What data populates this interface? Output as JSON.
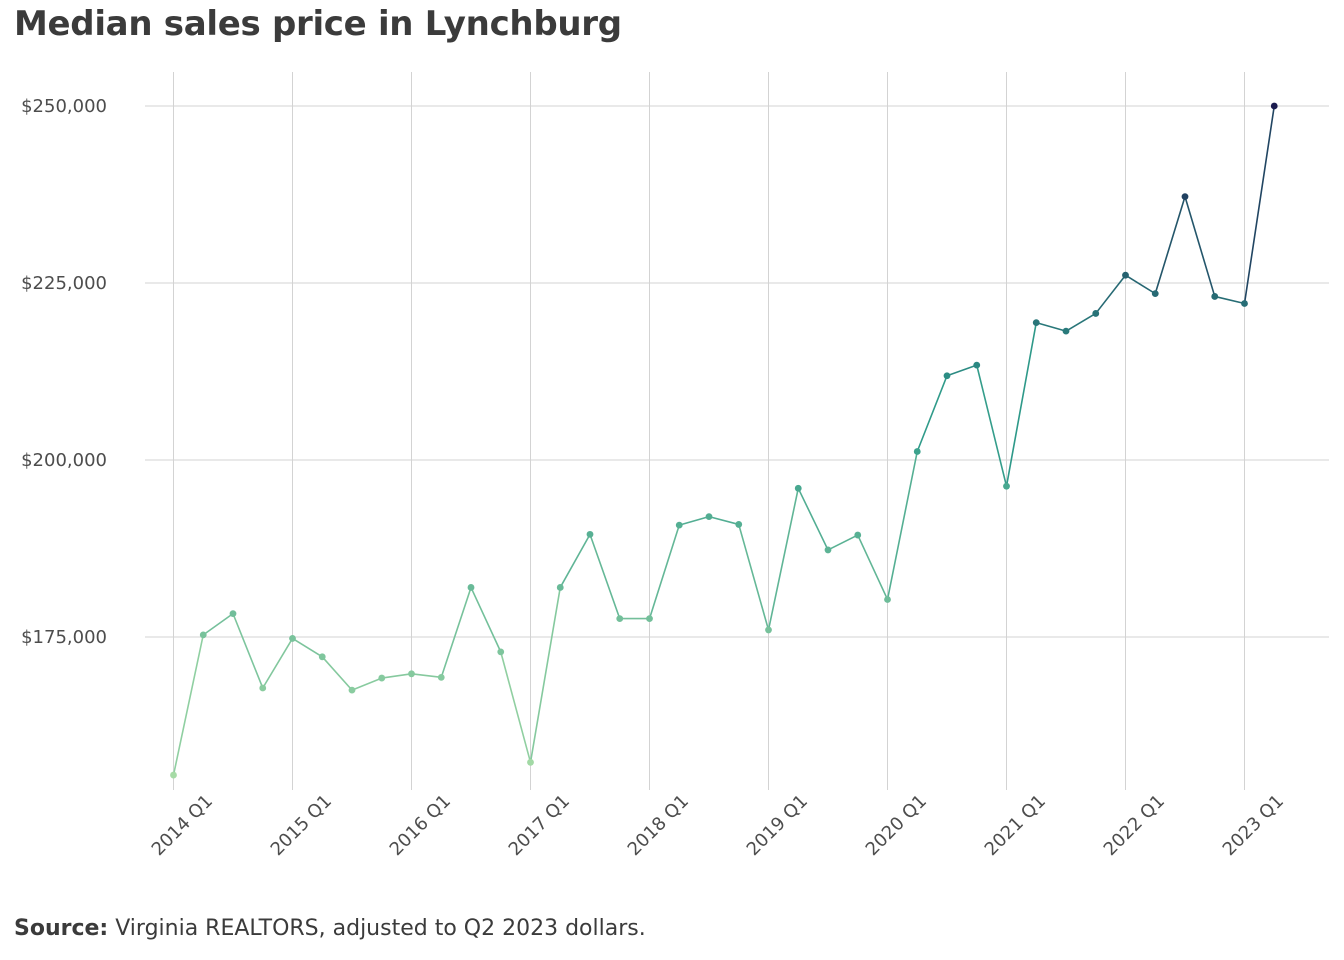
{
  "title": "Median sales price in Lynchburg",
  "source": {
    "label": "Source:",
    "text": " Virginia REALTORS, adjusted to Q2 2023 dollars."
  },
  "colors": {
    "low": "#a6dba6",
    "mid": "#2e9a8a",
    "high": "#1b1b4f",
    "grid": "#d3d3d3"
  },
  "chart_data": {
    "type": "line",
    "title": "Median sales price in Lynchburg",
    "xlabel": "",
    "ylabel": "",
    "ylim": [
      154000,
      254500
    ],
    "yticks": [
      175000,
      200000,
      225000,
      250000
    ],
    "ytick_labels": [
      "$175,000",
      "$200,000",
      "$225,000",
      "$250,000"
    ],
    "xtick_labels": [
      "2014 Q1",
      "2015 Q1",
      "2016 Q1",
      "2017 Q1",
      "2018 Q1",
      "2019 Q1",
      "2020 Q1",
      "2021 Q1",
      "2022 Q1",
      "2023 Q1"
    ],
    "grid": true,
    "legend": "none",
    "x": [
      "2014 Q1",
      "2014 Q2",
      "2014 Q3",
      "2014 Q4",
      "2015 Q1",
      "2015 Q2",
      "2015 Q3",
      "2015 Q4",
      "2016 Q1",
      "2016 Q2",
      "2016 Q3",
      "2016 Q4",
      "2017 Q1",
      "2017 Q2",
      "2017 Q3",
      "2017 Q4",
      "2018 Q1",
      "2018 Q2",
      "2018 Q3",
      "2018 Q4",
      "2019 Q1",
      "2019 Q2",
      "2019 Q3",
      "2019 Q4",
      "2020 Q1",
      "2020 Q2",
      "2020 Q3",
      "2020 Q4",
      "2021 Q1",
      "2021 Q2",
      "2021 Q3",
      "2021 Q4",
      "2022 Q1",
      "2022 Q2",
      "2022 Q3",
      "2022 Q4",
      "2023 Q1",
      "2023 Q2"
    ],
    "values": [
      155500,
      175300,
      178300,
      167800,
      174800,
      172200,
      167500,
      169200,
      169800,
      169300,
      182000,
      172900,
      157300,
      182000,
      189500,
      177600,
      177600,
      190800,
      192000,
      190900,
      176000,
      196000,
      187300,
      189400,
      180300,
      201200,
      211900,
      213400,
      196300,
      219400,
      218200,
      220700,
      226100,
      223500,
      237200,
      223100,
      222100,
      250000
    ]
  }
}
